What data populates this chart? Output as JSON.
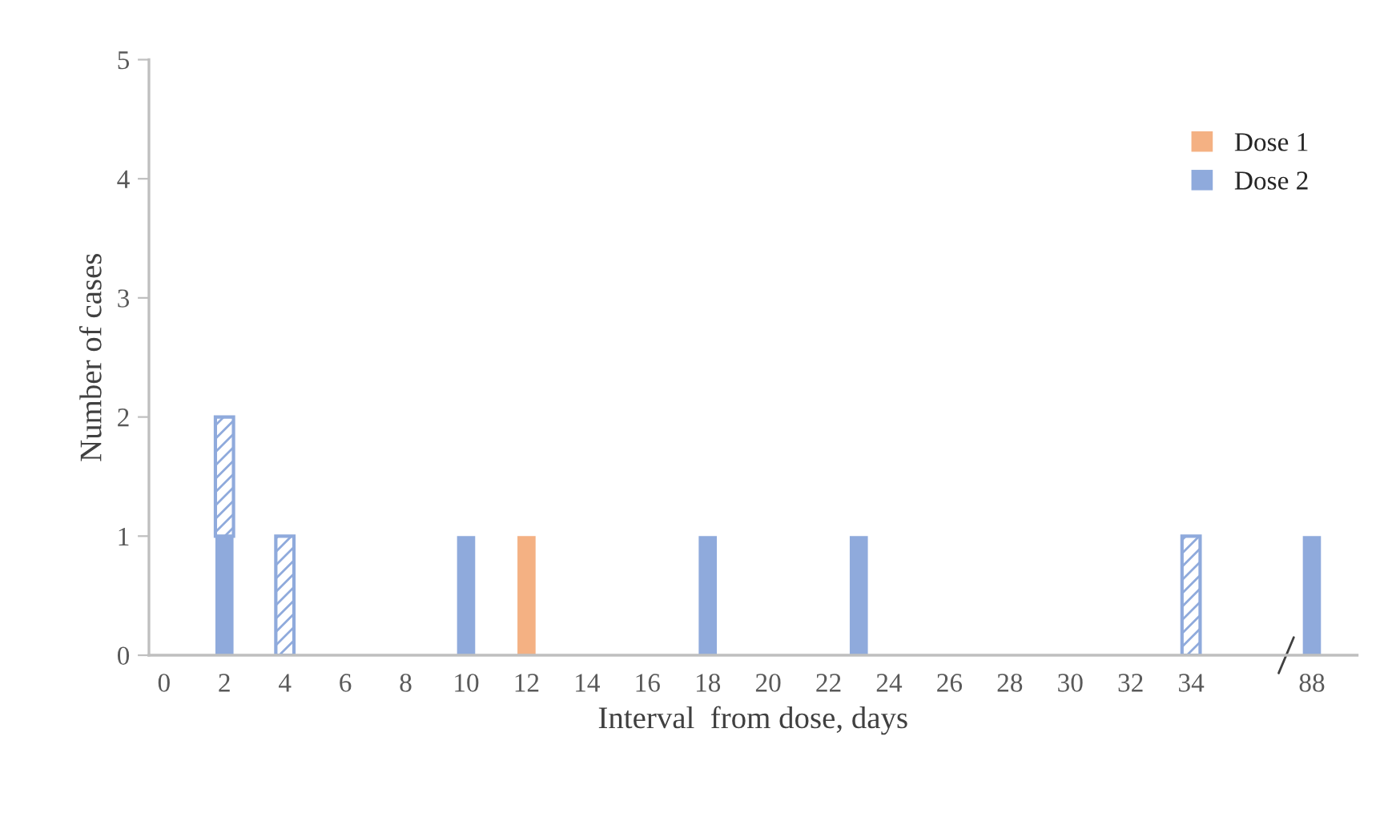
{
  "chart_data": {
    "type": "bar",
    "xlabel": "Interval  from dose, days",
    "ylabel": "Number of cases",
    "categories": [
      "0",
      null,
      "2",
      null,
      "4",
      null,
      "6",
      null,
      "8",
      null,
      "10",
      null,
      "12",
      null,
      "14",
      null,
      "16",
      null,
      "18",
      null,
      "20",
      null,
      "22",
      null,
      "24",
      null,
      "26",
      null,
      "28",
      null,
      "30",
      null,
      "32",
      null,
      "34",
      null,
      null,
      null,
      "88",
      null
    ],
    "series": [
      {
        "name": "Dose 1",
        "color": "#f4b183",
        "values": [
          null,
          null,
          null,
          null,
          null,
          null,
          null,
          null,
          null,
          null,
          null,
          null,
          1,
          null,
          null,
          null,
          null,
          null,
          null,
          null,
          null,
          null,
          null,
          null,
          null,
          null,
          null,
          null,
          null,
          null,
          null,
          null,
          null,
          null,
          null,
          null,
          null,
          null,
          null,
          null
        ]
      },
      {
        "name": "Dose 2",
        "color": "#8faadc",
        "values": [
          null,
          null,
          1,
          null,
          null,
          null,
          null,
          null,
          null,
          null,
          1,
          null,
          null,
          null,
          null,
          null,
          null,
          null,
          1,
          null,
          null,
          null,
          null,
          1,
          null,
          null,
          null,
          null,
          null,
          null,
          null,
          null,
          null,
          null,
          null,
          null,
          null,
          null,
          1,
          null
        ]
      },
      {
        "color": "#8faadc",
        "values": [
          null,
          null,
          1,
          null,
          1,
          null,
          null,
          null,
          null,
          null,
          null,
          null,
          null,
          null,
          null,
          null,
          null,
          null,
          null,
          null,
          null,
          null,
          null,
          null,
          null,
          null,
          null,
          null,
          null,
          null,
          null,
          null,
          null,
          null,
          1,
          null,
          null,
          null,
          null,
          null
        ]
      }
    ],
    "stacked": true,
    "ylim": [
      0,
      5
    ],
    "yticks": [
      0,
      1,
      2,
      3,
      4,
      5
    ],
    "grid": false,
    "legend": "top right"
  }
}
